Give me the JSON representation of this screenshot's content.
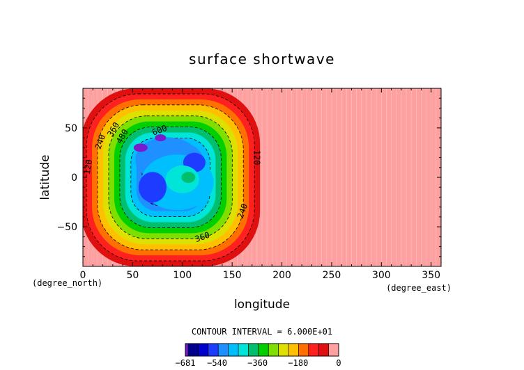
{
  "chart_data": {
    "type": "heatmap",
    "title": "surface shortwave",
    "xlabel": "longitude",
    "ylabel": "latitude",
    "x_unit": "(degree_east)",
    "y_unit": "(degree_north)",
    "xlim": [
      0,
      360
    ],
    "ylim": [
      -90,
      90
    ],
    "x_ticks": [
      0,
      50,
      100,
      150,
      200,
      250,
      300,
      350
    ],
    "y_ticks": [
      -50,
      0,
      50
    ],
    "contour_interval_text": "CONTOUR INTERVAL = 6.000E+01",
    "contour_labels": [
      {
        "text": "120",
        "lon": 8,
        "lat": 10,
        "angle": -80
      },
      {
        "text": "240",
        "lon": 20,
        "lat": 35,
        "angle": -70
      },
      {
        "text": "360",
        "lon": 33,
        "lat": 47,
        "angle": -60
      },
      {
        "text": "480",
        "lon": 42,
        "lat": 40,
        "angle": -60
      },
      {
        "text": "600",
        "lon": 78,
        "lat": 45,
        "angle": -20
      },
      {
        "text": "120",
        "lon": 172,
        "lat": 20,
        "angle": 90
      },
      {
        "text": "240",
        "lon": 163,
        "lat": -35,
        "angle": -70
      },
      {
        "text": "360",
        "lon": 121,
        "lat": -63,
        "angle": -20
      }
    ],
    "colorbar": {
      "min": -681,
      "max": 0,
      "tick_labels": [
        "−681",
        "−540",
        "−360",
        "−180",
        "0"
      ],
      "tick_values": [
        -681,
        -540,
        -360,
        -180,
        0
      ],
      "colors": [
        "#7a1bd0",
        "#00008b",
        "#0000cd",
        "#1e3cff",
        "#1e90ff",
        "#00bfff",
        "#00e5d8",
        "#00c070",
        "#00d000",
        "#7fe000",
        "#dde000",
        "#ffc000",
        "#ff7000",
        "#ff2020",
        "#e01010",
        "#ffa0a0"
      ]
    }
  }
}
